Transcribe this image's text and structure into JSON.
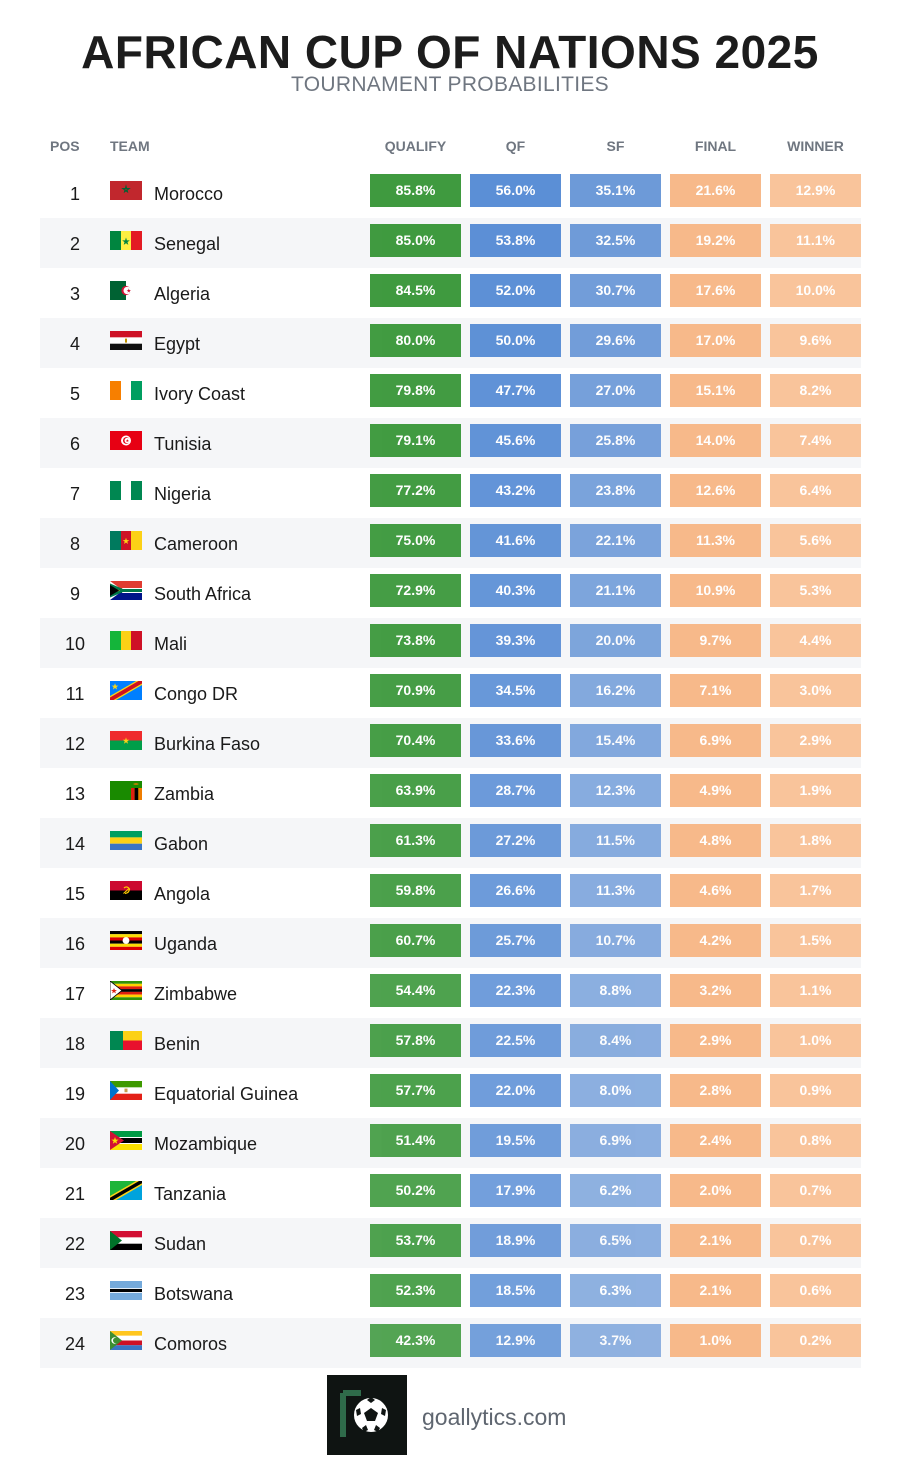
{
  "title": "AFRICAN CUP OF NATIONS 2025",
  "subtitle": "TOURNAMENT PROBABILITIES",
  "headers": {
    "pos": "POS",
    "team": "TEAM",
    "qualify": "QUALIFY",
    "qf": "QF",
    "sf": "SF",
    "final": "FINAL",
    "winner": "WINNER"
  },
  "colors": {
    "qualify": "#3f9a3f",
    "qf": "#5b8fd6",
    "sf": "#6d9ad8",
    "final": "#f7b98a",
    "winner": "#f9c49b",
    "row_alt": "#f5f6f8"
  },
  "footer": {
    "site": "goallytics.com",
    "logo": "football-logo-icon"
  },
  "chart_data": {
    "type": "table",
    "columns": [
      "QUALIFY",
      "QF",
      "SF",
      "FINAL",
      "WINNER"
    ],
    "rows": [
      {
        "pos": "1",
        "team": "Morocco",
        "flag": "morocco-flag-icon",
        "values": [
          "85.8%",
          "56.0%",
          "35.1%",
          "21.6%",
          "12.9%"
        ]
      },
      {
        "pos": "2",
        "team": "Senegal",
        "flag": "senegal-flag-icon",
        "values": [
          "85.0%",
          "53.8%",
          "32.5%",
          "19.2%",
          "11.1%"
        ]
      },
      {
        "pos": "3",
        "team": "Algeria",
        "flag": "algeria-flag-icon",
        "values": [
          "84.5%",
          "52.0%",
          "30.7%",
          "17.6%",
          "10.0%"
        ]
      },
      {
        "pos": "4",
        "team": "Egypt",
        "flag": "egypt-flag-icon",
        "values": [
          "80.0%",
          "50.0%",
          "29.6%",
          "17.0%",
          "9.6%"
        ]
      },
      {
        "pos": "5",
        "team": "Ivory Coast",
        "flag": "ivory-coast-flag-icon",
        "values": [
          "79.8%",
          "47.7%",
          "27.0%",
          "15.1%",
          "8.2%"
        ]
      },
      {
        "pos": "6",
        "team": "Tunisia",
        "flag": "tunisia-flag-icon",
        "values": [
          "79.1%",
          "45.6%",
          "25.8%",
          "14.0%",
          "7.4%"
        ]
      },
      {
        "pos": "7",
        "team": "Nigeria",
        "flag": "nigeria-flag-icon",
        "values": [
          "77.2%",
          "43.2%",
          "23.8%",
          "12.6%",
          "6.4%"
        ]
      },
      {
        "pos": "8",
        "team": "Cameroon",
        "flag": "cameroon-flag-icon",
        "values": [
          "75.0%",
          "41.6%",
          "22.1%",
          "11.3%",
          "5.6%"
        ]
      },
      {
        "pos": "9",
        "team": "South Africa",
        "flag": "south-africa-flag-icon",
        "values": [
          "72.9%",
          "40.3%",
          "21.1%",
          "10.9%",
          "5.3%"
        ]
      },
      {
        "pos": "10",
        "team": "Mali",
        "flag": "mali-flag-icon",
        "values": [
          "73.8%",
          "39.3%",
          "20.0%",
          "9.7%",
          "4.4%"
        ]
      },
      {
        "pos": "11",
        "team": "Congo DR",
        "flag": "congo-dr-flag-icon",
        "values": [
          "70.9%",
          "34.5%",
          "16.2%",
          "7.1%",
          "3.0%"
        ]
      },
      {
        "pos": "12",
        "team": "Burkina Faso",
        "flag": "burkina-faso-flag-icon",
        "values": [
          "70.4%",
          "33.6%",
          "15.4%",
          "6.9%",
          "2.9%"
        ]
      },
      {
        "pos": "13",
        "team": "Zambia",
        "flag": "zambia-flag-icon",
        "values": [
          "63.9%",
          "28.7%",
          "12.3%",
          "4.9%",
          "1.9%"
        ]
      },
      {
        "pos": "14",
        "team": "Gabon",
        "flag": "gabon-flag-icon",
        "values": [
          "61.3%",
          "27.2%",
          "11.5%",
          "4.8%",
          "1.8%"
        ]
      },
      {
        "pos": "15",
        "team": "Angola",
        "flag": "angola-flag-icon",
        "values": [
          "59.8%",
          "26.6%",
          "11.3%",
          "4.6%",
          "1.7%"
        ]
      },
      {
        "pos": "16",
        "team": "Uganda",
        "flag": "uganda-flag-icon",
        "values": [
          "60.7%",
          "25.7%",
          "10.7%",
          "4.2%",
          "1.5%"
        ]
      },
      {
        "pos": "17",
        "team": "Zimbabwe",
        "flag": "zimbabwe-flag-icon",
        "values": [
          "54.4%",
          "22.3%",
          "8.8%",
          "3.2%",
          "1.1%"
        ]
      },
      {
        "pos": "18",
        "team": "Benin",
        "flag": "benin-flag-icon",
        "values": [
          "57.8%",
          "22.5%",
          "8.4%",
          "2.9%",
          "1.0%"
        ]
      },
      {
        "pos": "19",
        "team": "Equatorial Guinea",
        "flag": "equatorial-guinea-flag-icon",
        "values": [
          "57.7%",
          "22.0%",
          "8.0%",
          "2.8%",
          "0.9%"
        ]
      },
      {
        "pos": "20",
        "team": "Mozambique",
        "flag": "mozambique-flag-icon",
        "values": [
          "51.4%",
          "19.5%",
          "6.9%",
          "2.4%",
          "0.8%"
        ]
      },
      {
        "pos": "21",
        "team": "Tanzania",
        "flag": "tanzania-flag-icon",
        "values": [
          "50.2%",
          "17.9%",
          "6.2%",
          "2.0%",
          "0.7%"
        ]
      },
      {
        "pos": "22",
        "team": "Sudan",
        "flag": "sudan-flag-icon",
        "values": [
          "53.7%",
          "18.9%",
          "6.5%",
          "2.1%",
          "0.7%"
        ]
      },
      {
        "pos": "23",
        "team": "Botswana",
        "flag": "botswana-flag-icon",
        "values": [
          "52.3%",
          "18.5%",
          "6.3%",
          "2.1%",
          "0.6%"
        ]
      },
      {
        "pos": "24",
        "team": "Comoros",
        "flag": "comoros-flag-icon",
        "values": [
          "42.3%",
          "12.9%",
          "3.7%",
          "1.0%",
          "0.2%"
        ]
      }
    ]
  }
}
